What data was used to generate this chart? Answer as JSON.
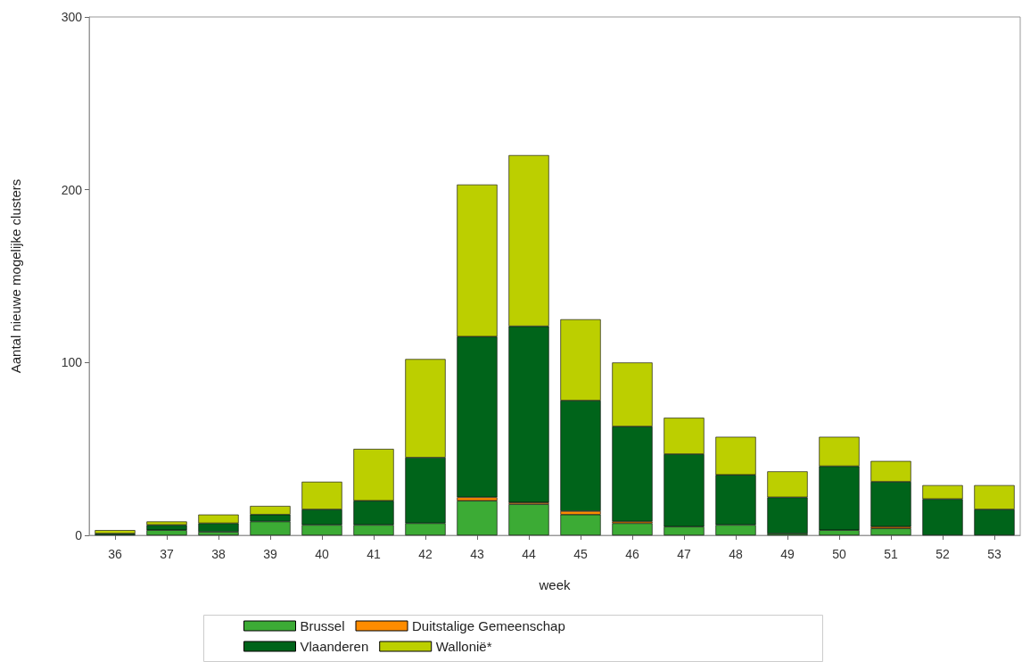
{
  "chart_data": {
    "type": "bar",
    "stacked": true,
    "xlabel": "week",
    "ylabel": "Aantal nieuwe mogelijke clusters",
    "categories": [
      "36",
      "37",
      "38",
      "39",
      "40",
      "41",
      "42",
      "43",
      "44",
      "45",
      "46",
      "47",
      "48",
      "49",
      "50",
      "51",
      "52",
      "53"
    ],
    "series": [
      {
        "name": "Brussel",
        "color": "#3cab35",
        "values": [
          0,
          3,
          2,
          8,
          6,
          6,
          7,
          20,
          18,
          12,
          7,
          5,
          6,
          1,
          3,
          4,
          0,
          0
        ]
      },
      {
        "name": "Duitstalige Gemeenschap",
        "color": "#ff8c00",
        "values": [
          0,
          0,
          0,
          0,
          0,
          0,
          0,
          2,
          1,
          2,
          1,
          0,
          0,
          0,
          0,
          1,
          0,
          0
        ]
      },
      {
        "name": "Vlaanderen",
        "color": "#00641a",
        "values": [
          1,
          3,
          5,
          4,
          9,
          14,
          38,
          93,
          102,
          64,
          55,
          42,
          29,
          21,
          37,
          26,
          21,
          15
        ]
      },
      {
        "name": "Wallonië*",
        "color": "#bccf00",
        "values": [
          2,
          2,
          5,
          5,
          16,
          30,
          57,
          88,
          99,
          47,
          37,
          21,
          22,
          15,
          17,
          12,
          8,
          14
        ]
      }
    ],
    "ylim": [
      0,
      300
    ],
    "yticks": [
      0,
      100,
      200,
      300
    ],
    "grid": false,
    "legend": "bottom"
  }
}
